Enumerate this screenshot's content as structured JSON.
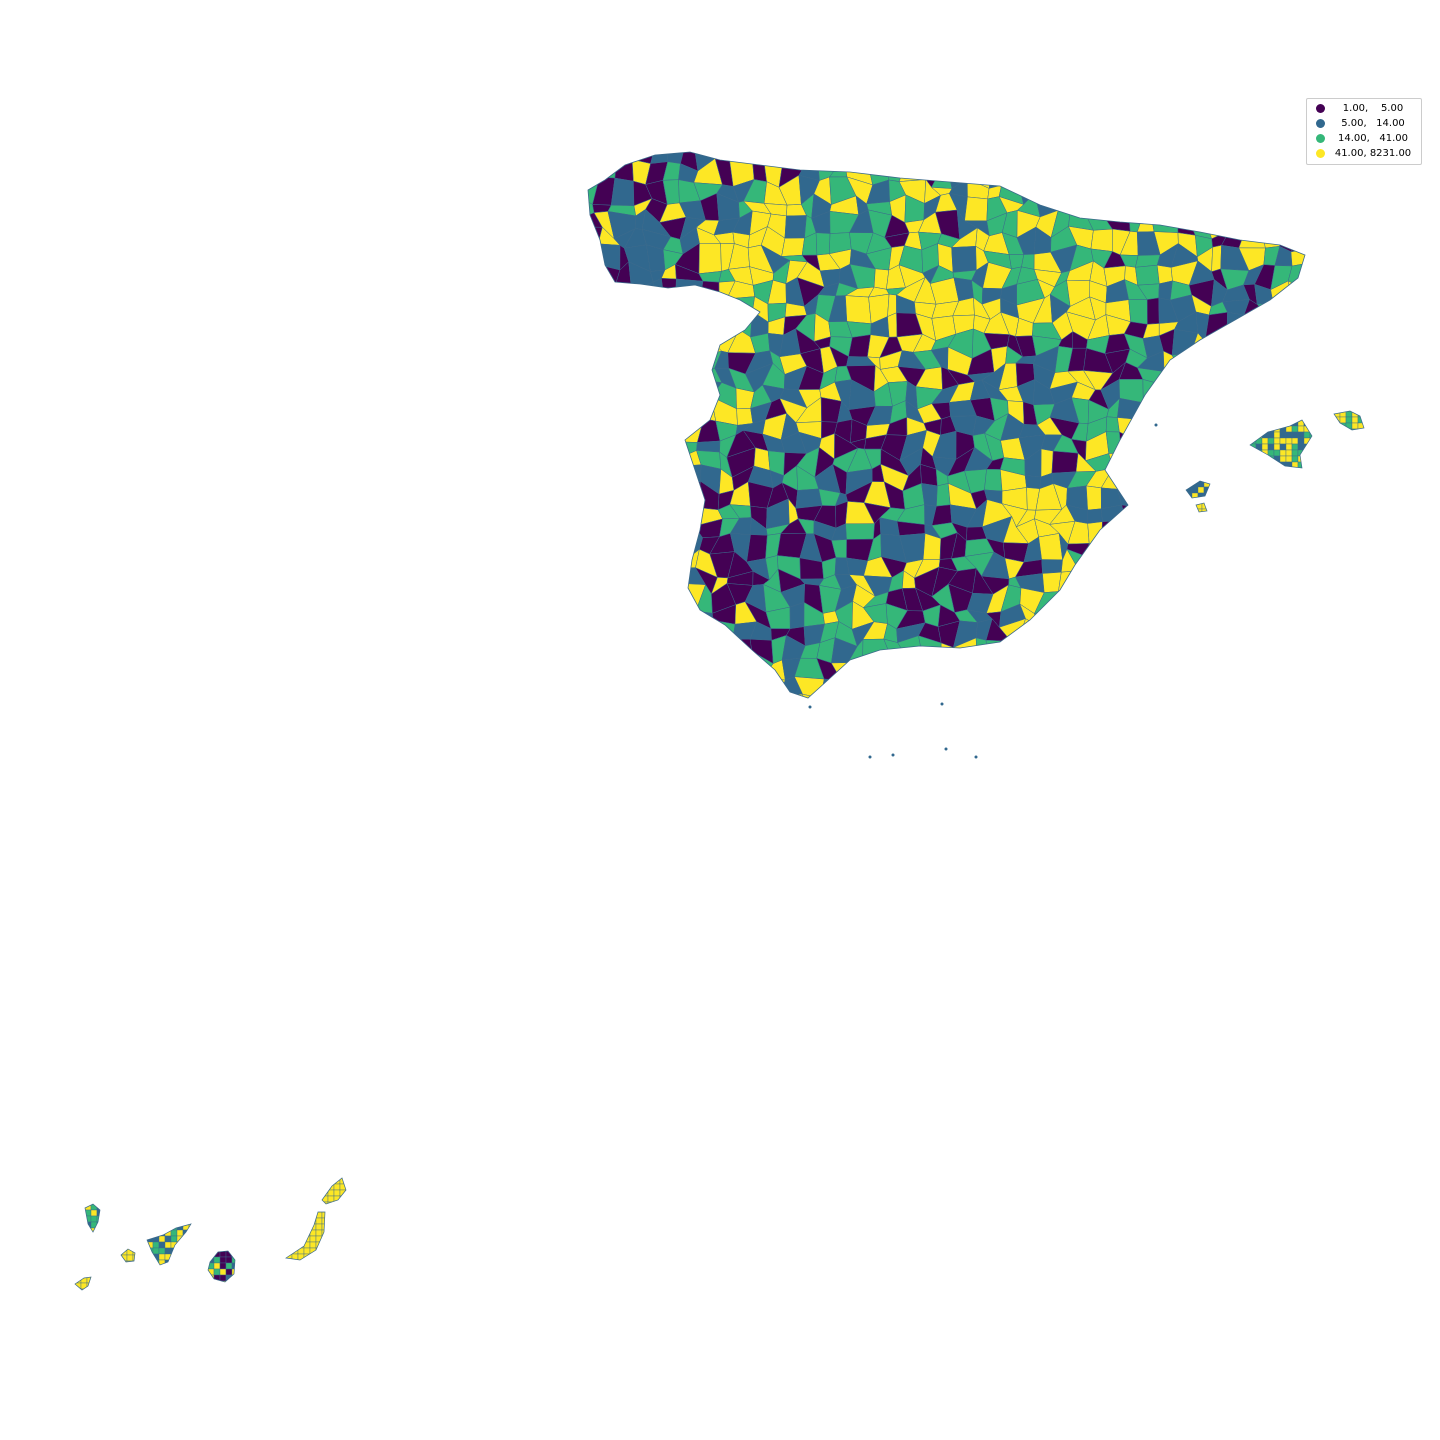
{
  "palette": {
    "c1": "#440154",
    "c2": "#31688e",
    "c3": "#35b779",
    "c4": "#fde725",
    "edge": "#3b6a8c"
  },
  "legend": {
    "items": [
      {
        "label": "1.00,    5.00",
        "color": "#440154"
      },
      {
        "label": "5.00,   14.00",
        "color": "#31688e"
      },
      {
        "label": "14.00,   41.00",
        "color": "#35b779"
      },
      {
        "label": "41.00, 8231.00",
        "color": "#fde725"
      }
    ]
  },
  "map": {
    "regions": [
      {
        "name": "mainland-spain"
      },
      {
        "name": "mallorca"
      },
      {
        "name": "menorca"
      },
      {
        "name": "ibiza"
      },
      {
        "name": "formentera"
      },
      {
        "name": "la-palma"
      },
      {
        "name": "el-hierro"
      },
      {
        "name": "la-gomera"
      },
      {
        "name": "tenerife"
      },
      {
        "name": "gran-canaria"
      },
      {
        "name": "fuerteventura"
      },
      {
        "name": "lanzarote"
      }
    ]
  }
}
